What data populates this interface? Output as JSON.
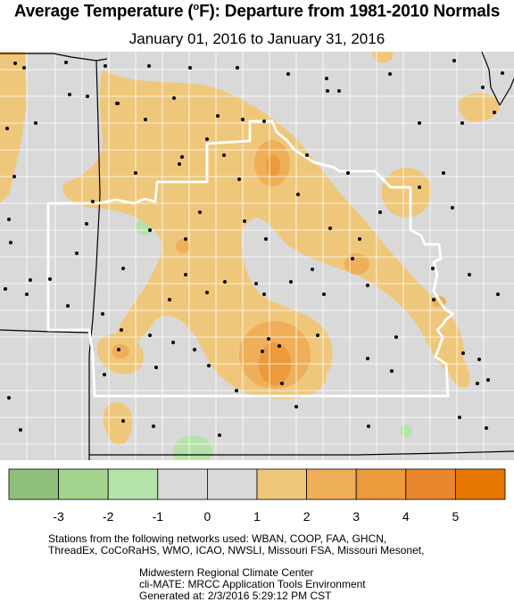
{
  "header": {
    "title_main": "Average Temperature (",
    "title_deg": "o",
    "title_rest": "F): Departure from 1981-2010 Normals",
    "subtitle": "January 01, 2016 to January 31, 2016"
  },
  "legend": {
    "bins": [
      {
        "color": "#8fbf7a"
      },
      {
        "color": "#a3d38c"
      },
      {
        "color": "#b5e2a9"
      },
      {
        "color": "#d9d9d9"
      },
      {
        "color": "#d9d9d9"
      },
      {
        "color": "#efc77a"
      },
      {
        "color": "#eeaf58"
      },
      {
        "color": "#eb9a3c"
      },
      {
        "color": "#e8862b"
      },
      {
        "color": "#e67700"
      }
    ],
    "labels": [
      "-3",
      "-2",
      "-1",
      "0",
      "1",
      "2",
      "3",
      "4",
      "5"
    ]
  },
  "map_colors": {
    "background": "#d9d9d9",
    "band1": "#efc77a",
    "band2": "#eeaf58",
    "band3": "#eb9a3c",
    "cool": "#b5e2a9",
    "county_lines": "#ffffff",
    "state_lines": "#000000",
    "focus_outline": "#ffffff",
    "stations": "#000000"
  },
  "credits": {
    "line1": "Stations from the following networks used: WBAN, COOP, FAA, GHCN,",
    "line2": "ThreadEx, CoCoRaHS, WMO, ICAO, NWSLI, Missouri FSA, Missouri Mesonet,",
    "line3": "Midwestern Regional Climate Center",
    "line4": "cli-MATE: MRCC Application Tools Environment",
    "line5": "Generated at: 2/3/2016 5:29:12 PM CST"
  }
}
